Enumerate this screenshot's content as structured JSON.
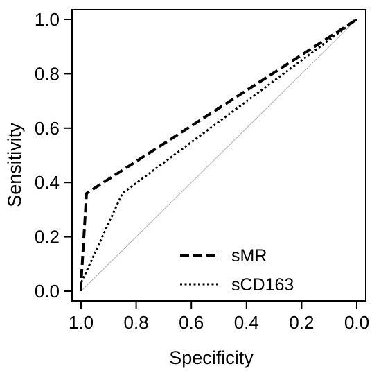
{
  "chart_data": {
    "type": "line",
    "xlabel": "Specificity",
    "ylabel": "Sensitivity",
    "xlim": [
      1.0,
      0.0
    ],
    "ylim": [
      0.0,
      1.0
    ],
    "x_axis_reversed": true,
    "x_ticks": [
      "1.0",
      "0.8",
      "0.6",
      "0.4",
      "0.2",
      "0.0"
    ],
    "y_ticks": [
      "0.0",
      "0.2",
      "0.4",
      "0.6",
      "0.8",
      "1.0"
    ],
    "grid": false,
    "legend_position": "bottom-center",
    "reference_line": {
      "x": [
        1.0,
        0.0
      ],
      "y": [
        0.0,
        1.0
      ],
      "color": "#b0b0b0"
    },
    "series": [
      {
        "name": "sMR",
        "line_style": "dashed",
        "color": "#000000",
        "points": [
          {
            "x": 1.0,
            "y": 0.0
          },
          {
            "x": 1.0,
            "y": 0.03
          },
          {
            "x": 0.98,
            "y": 0.36
          },
          {
            "x": 0.0,
            "y": 1.0
          }
        ]
      },
      {
        "name": "sCD163",
        "line_style": "dotted",
        "color": "#000000",
        "points": [
          {
            "x": 1.0,
            "y": 0.0
          },
          {
            "x": 1.0,
            "y": 0.03
          },
          {
            "x": 0.85,
            "y": 0.36
          },
          {
            "x": 0.0,
            "y": 1.0
          }
        ]
      }
    ]
  }
}
